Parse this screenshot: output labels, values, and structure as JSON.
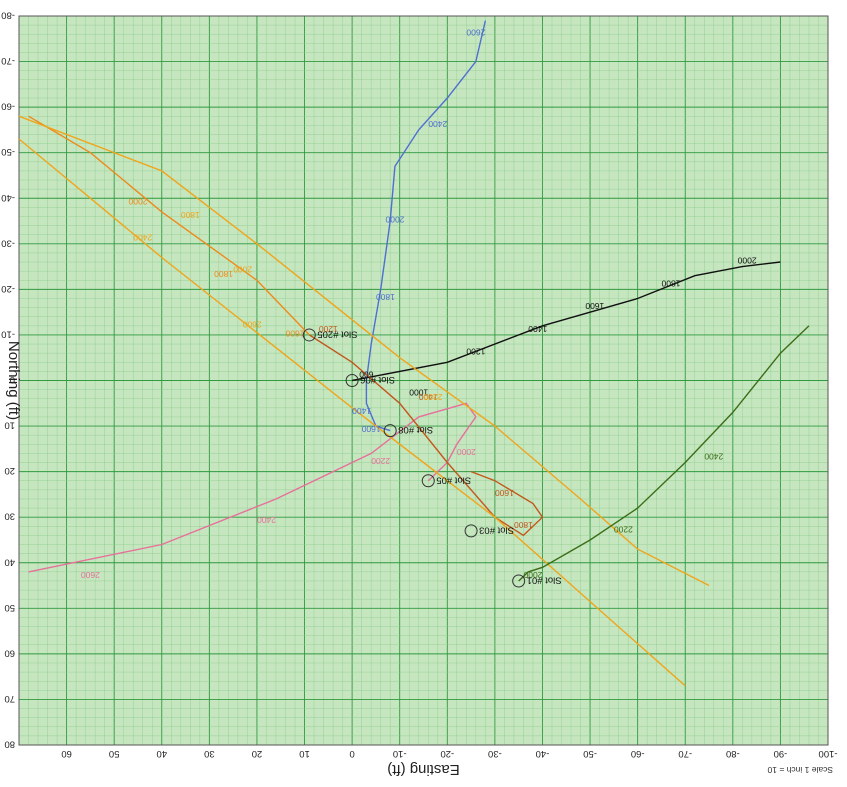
{
  "chart_data": {
    "type": "scatter",
    "xlabel": "Easting (ft)",
    "ylabel": "Northing (ft)",
    "scale_note": "Scale 1 inch = 10",
    "xlim": [
      -100,
      70
    ],
    "ylim": [
      -80,
      80
    ],
    "x_ticks": [
      -100,
      -90,
      -80,
      -70,
      -60,
      -50,
      -40,
      -30,
      -20,
      -10,
      0,
      10,
      20,
      30,
      40,
      50,
      60
    ],
    "y_ticks": [
      -80,
      -70,
      -60,
      -50,
      -40,
      -30,
      -20,
      -10,
      0,
      10,
      20,
      30,
      40,
      50,
      60,
      70,
      80
    ],
    "grid": true,
    "colors": {
      "background": "#c6e6c0",
      "grid_minor": "#8ccc8c",
      "grid_major": "#2f9a3f"
    },
    "slots": [
      {
        "name": "Slot #06",
        "x": 0,
        "y": 0
      },
      {
        "name": "Slot #08",
        "x": -8,
        "y": 11
      },
      {
        "name": "Slot #205",
        "x": 9,
        "y": -10
      },
      {
        "name": "Slot #05",
        "x": -16,
        "y": 22
      },
      {
        "name": "Slot #03",
        "x": -25,
        "y": 33
      },
      {
        "name": "Slot #01",
        "x": -35,
        "y": 44
      }
    ],
    "series": [
      {
        "color": "#111111",
        "points": [
          [
            0,
            0
          ],
          [
            -20,
            -4
          ],
          [
            -40,
            -12
          ],
          [
            -60,
            -18
          ],
          [
            -72,
            -23
          ],
          [
            -82,
            -25
          ],
          [
            -90,
            -26
          ]
        ],
        "md_labels": [
          {
            "text": "600",
            "x": -3,
            "y": -2
          },
          {
            "text": "1000",
            "x": -14,
            "y": 2
          },
          {
            "text": "1200",
            "x": -26,
            "y": -7
          },
          {
            "text": "1400",
            "x": -39,
            "y": -12
          },
          {
            "text": "1600",
            "x": -51,
            "y": -17
          },
          {
            "text": "1800",
            "x": -67,
            "y": -22
          },
          {
            "text": "2000",
            "x": -83,
            "y": -27
          }
        ]
      },
      {
        "color": "#4f6fd0",
        "points": [
          [
            -8,
            11
          ],
          [
            -5,
            10
          ],
          [
            -3,
            5
          ],
          [
            -3,
            0
          ],
          [
            -4,
            -8
          ],
          [
            -6,
            -20
          ],
          [
            -8,
            -35
          ],
          [
            -9,
            -47
          ],
          [
            -14,
            -55
          ],
          [
            -20,
            -62
          ],
          [
            -26,
            -70
          ],
          [
            -28,
            -79
          ]
        ],
        "md_labels": [
          {
            "text": "1400",
            "x": -2,
            "y": 6
          },
          {
            "text": "1600",
            "x": -4,
            "y": 10
          },
          {
            "text": "1800",
            "x": -7,
            "y": -19
          },
          {
            "text": "2000",
            "x": -9,
            "y": -36
          },
          {
            "text": "2400",
            "x": -18,
            "y": -57
          },
          {
            "text": "2600",
            "x": -26,
            "y": -77
          }
        ]
      },
      {
        "color": "#e7709a",
        "points": [
          [
            -16,
            22
          ],
          [
            -20,
            18
          ],
          [
            -22,
            14
          ],
          [
            -26,
            8
          ],
          [
            -24,
            5
          ],
          [
            -14,
            8
          ],
          [
            -4,
            16
          ],
          [
            16,
            26
          ],
          [
            40,
            36
          ],
          [
            68,
            42
          ]
        ],
        "md_labels": [
          {
            "text": "2000",
            "x": -24,
            "y": 15
          },
          {
            "text": "2200",
            "x": -6,
            "y": 17
          },
          {
            "text": "2400",
            "x": 18,
            "y": 30
          },
          {
            "text": "2600",
            "x": 55,
            "y": 42
          }
        ]
      },
      {
        "color": "#c2581c",
        "points": [
          [
            9,
            -10
          ],
          [
            0,
            -4
          ],
          [
            -10,
            5
          ],
          [
            -20,
            18
          ],
          [
            -30,
            30
          ],
          [
            -36,
            34
          ],
          [
            -40,
            30
          ],
          [
            -38,
            27
          ],
          [
            -30,
            22
          ],
          [
            -25,
            20
          ]
        ],
        "md_labels": [
          {
            "text": "1200",
            "x": 5,
            "y": -12
          },
          {
            "text": "1400",
            "x": -16,
            "y": 3
          },
          {
            "text": "1600",
            "x": -32,
            "y": 24
          },
          {
            "text": "1800",
            "x": -36,
            "y": 31
          }
        ]
      },
      {
        "color": "#ee8a1a",
        "points": [
          [
            9,
            -10
          ],
          [
            20,
            -22
          ],
          [
            40,
            -37
          ],
          [
            55,
            -50
          ],
          [
            68,
            -58
          ]
        ],
        "md_labels": [
          {
            "text": "1600",
            "x": 12,
            "y": -11
          },
          {
            "text": "1800",
            "x": 27,
            "y": -24
          },
          {
            "text": "2000",
            "x": 45,
            "y": -40
          }
        ]
      },
      {
        "color": "#f0a51a",
        "points": [
          [
            70,
            -53
          ],
          [
            40,
            -27
          ],
          [
            0,
            6
          ],
          [
            -30,
            30
          ],
          [
            -57,
            55
          ],
          [
            -70,
            67
          ]
        ],
        "md_labels": [
          {
            "text": "2400",
            "x": 44,
            "y": -32
          },
          {
            "text": "2600",
            "x": 21,
            "y": -13
          }
        ]
      },
      {
        "color": "#f0a51a",
        "points": [
          [
            70,
            -58
          ],
          [
            40,
            -46
          ],
          [
            20,
            -30
          ],
          [
            -10,
            -5
          ],
          [
            -30,
            10
          ],
          [
            -48,
            26
          ],
          [
            -60,
            37
          ],
          [
            -75,
            45
          ]
        ],
        "md_labels": [
          {
            "text": "1800",
            "x": 34,
            "y": -37
          },
          {
            "text": "2000",
            "x": 23,
            "y": -25
          },
          {
            "text": "2200",
            "x": -17,
            "y": 3
          }
        ]
      },
      {
        "color": "#3c6e18",
        "points": [
          [
            -35,
            44
          ],
          [
            -37,
            42
          ],
          [
            -40,
            41
          ],
          [
            -50,
            35
          ],
          [
            -60,
            28
          ],
          [
            -70,
            18
          ],
          [
            -80,
            7
          ],
          [
            -90,
            -6
          ],
          [
            -96,
            -12
          ]
        ],
        "md_labels": [
          {
            "text": "2000",
            "x": -38,
            "y": 42
          },
          {
            "text": "2200",
            "x": -57,
            "y": 32
          },
          {
            "text": "2400",
            "x": -76,
            "y": 16
          }
        ]
      }
    ]
  }
}
